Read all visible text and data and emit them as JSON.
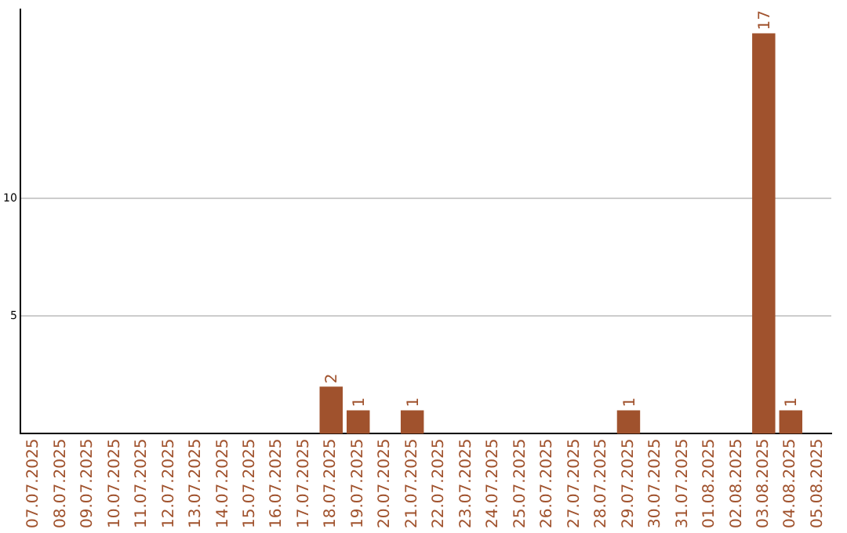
{
  "chart_data": {
    "type": "bar",
    "categories": [
      "07.07.2025",
      "08.07.2025",
      "09.07.2025",
      "10.07.2025",
      "11.07.2025",
      "12.07.2025",
      "13.07.2025",
      "14.07.2025",
      "15.07.2025",
      "16.07.2025",
      "17.07.2025",
      "18.07.2025",
      "19.07.2025",
      "20.07.2025",
      "21.07.2025",
      "22.07.2025",
      "23.07.2025",
      "24.07.2025",
      "25.07.2025",
      "26.07.2025",
      "27.07.2025",
      "28.07.2025",
      "29.07.2025",
      "30.07.2025",
      "31.07.2025",
      "01.08.2025",
      "02.08.2025",
      "03.08.2025",
      "04.08.2025",
      "05.08.2025"
    ],
    "values": [
      0,
      0,
      0,
      0,
      0,
      0,
      0,
      0,
      0,
      0,
      0,
      2,
      1,
      0,
      1,
      0,
      0,
      0,
      0,
      0,
      0,
      0,
      1,
      0,
      0,
      0,
      0,
      17,
      1,
      0
    ],
    "value_labels": [
      null,
      null,
      null,
      null,
      null,
      null,
      null,
      null,
      null,
      null,
      null,
      "2",
      "1",
      null,
      "1",
      null,
      null,
      null,
      null,
      null,
      null,
      null,
      "1",
      null,
      null,
      null,
      null,
      "17",
      "1",
      null
    ],
    "color": "#a0522d",
    "ylim": [
      0,
      18
    ],
    "yticks": [
      5,
      10
    ],
    "grid": "y",
    "legend": false
  }
}
